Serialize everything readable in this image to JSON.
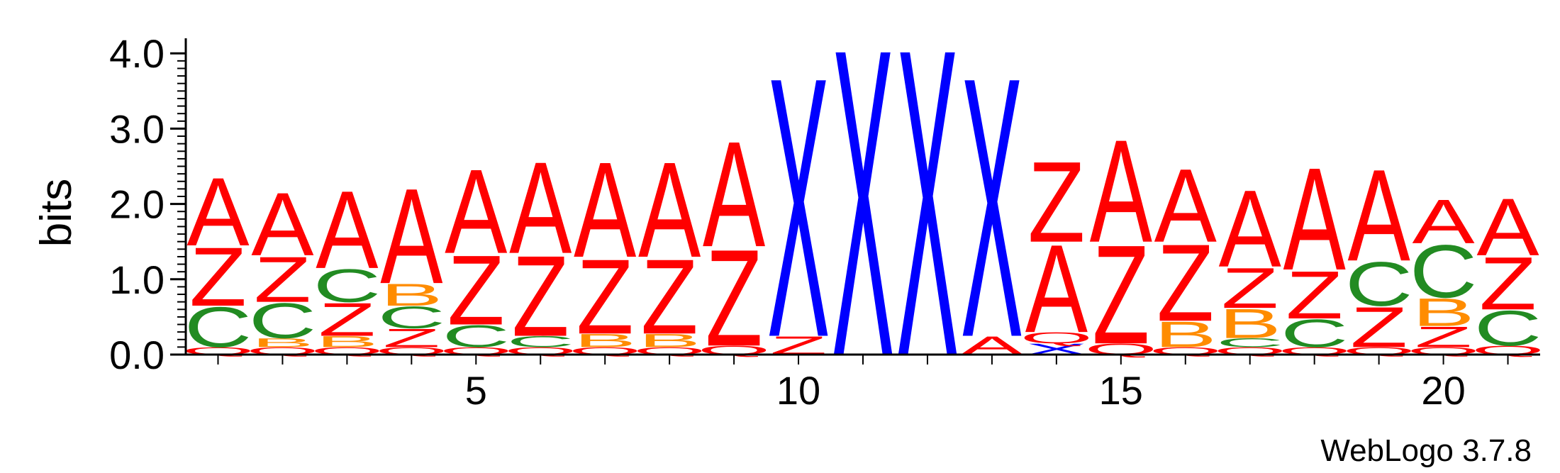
{
  "chart_data": {
    "type": "sequence-logo",
    "ylabel": "bits",
    "ylim": [
      0,
      4.2
    ],
    "yticks": [
      "0.0",
      "1.0",
      "2.0",
      "3.0",
      "4.0"
    ],
    "xticks": [
      5,
      10,
      15,
      20
    ],
    "positions": 21,
    "colors": {
      "A": "#ff0000",
      "Z": "#ff0000",
      "Q": "#ff0000",
      "C": "#228b22",
      "B": "#ff8c00",
      "X": "#0000ff"
    },
    "stacks": [
      [
        [
          "Q",
          0.1
        ],
        [
          "C",
          0.55
        ],
        [
          "Z",
          0.8
        ],
        [
          "A",
          0.93
        ]
      ],
      [
        [
          "Q",
          0.1
        ],
        [
          "B",
          0.12
        ],
        [
          "C",
          0.48
        ],
        [
          "Z",
          0.62
        ],
        [
          "A",
          0.86
        ]
      ],
      [
        [
          "Q",
          0.1
        ],
        [
          "B",
          0.15
        ],
        [
          "Z",
          0.45
        ],
        [
          "C",
          0.45
        ],
        [
          "A",
          1.06
        ]
      ],
      [
        [
          "Q",
          0.1
        ],
        [
          "Z",
          0.25
        ],
        [
          "C",
          0.3
        ],
        [
          "B",
          0.3
        ],
        [
          "A",
          1.3
        ]
      ],
      [
        [
          "Q",
          0.1
        ],
        [
          "C",
          0.3
        ],
        [
          "Z",
          0.95
        ],
        [
          "A",
          1.15
        ]
      ],
      [
        [
          "Q",
          0.1
        ],
        [
          "C",
          0.15
        ],
        [
          "Z",
          1.1
        ],
        [
          "A",
          1.25
        ]
      ],
      [
        [
          "Q",
          0.1
        ],
        [
          "B",
          0.18
        ],
        [
          "Z",
          1.02
        ],
        [
          "A",
          1.3
        ]
      ],
      [
        [
          "Q",
          0.1
        ],
        [
          "B",
          0.18
        ],
        [
          "Z",
          1.02
        ],
        [
          "A",
          1.3
        ]
      ],
      [
        [
          "Q",
          0.12
        ],
        [
          "Z",
          1.32
        ],
        [
          "A",
          1.44
        ]
      ],
      [
        [
          "Z",
          0.25
        ],
        [
          "X",
          3.55
        ]
      ],
      [
        [
          "X",
          4.2
        ]
      ],
      [
        [
          "X",
          4.2
        ]
      ],
      [
        [
          "A",
          0.25
        ],
        [
          "X",
          3.55
        ]
      ],
      [
        [
          "X",
          0.15
        ],
        [
          "Q",
          0.15
        ],
        [
          "A",
          1.2
        ],
        [
          "Z",
          1.1
        ]
      ],
      [
        [
          "Q",
          0.15
        ],
        [
          "Z",
          1.35
        ],
        [
          "A",
          1.4
        ]
      ],
      [
        [
          "Q",
          0.1
        ],
        [
          "B",
          0.35
        ],
        [
          "Z",
          1.05
        ],
        [
          "A",
          1.0
        ]
      ],
      [
        [
          "Q",
          0.1
        ],
        [
          "C",
          0.12
        ],
        [
          "B",
          0.4
        ],
        [
          "Z",
          0.55
        ],
        [
          "A",
          1.05
        ]
      ],
      [
        [
          "Q",
          0.1
        ],
        [
          "C",
          0.38
        ],
        [
          "Z",
          0.65
        ],
        [
          "A",
          1.4
        ]
      ],
      [
        [
          "Q",
          0.1
        ],
        [
          "Z",
          0.55
        ],
        [
          "C",
          0.6
        ],
        [
          "A",
          1.25
        ]
      ],
      [
        [
          "Q",
          0.1
        ],
        [
          "Z",
          0.28
        ],
        [
          "B",
          0.38
        ],
        [
          "C",
          0.72
        ],
        [
          "A",
          0.6
        ]
      ],
      [
        [
          "Q",
          0.12
        ],
        [
          "C",
          0.48
        ],
        [
          "Z",
          0.72
        ],
        [
          "A",
          0.78
        ]
      ]
    ]
  },
  "footer": {
    "credit": "WebLogo 3.7.8"
  }
}
